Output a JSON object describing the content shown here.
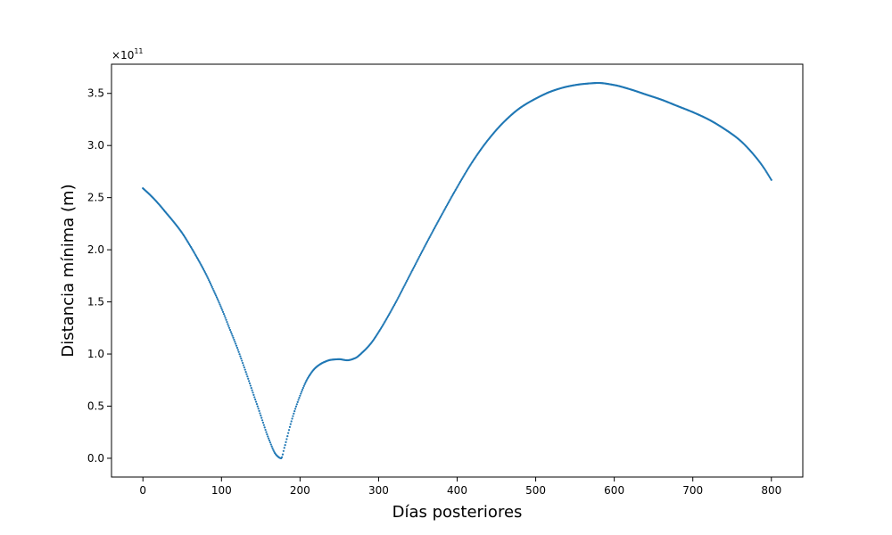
{
  "chart_data": {
    "type": "scatter",
    "title": "",
    "xlabel": "Días posteriores",
    "ylabel": "Distancia mínima (m)",
    "y_scale_base": "×10",
    "y_scale_exponent": "11",
    "y_scale_factor": 100000000000.0,
    "xlim": [
      -40,
      840
    ],
    "ylim": [
      -0.18,
      3.78
    ],
    "x_ticks": [
      0,
      100,
      200,
      300,
      400,
      500,
      600,
      700,
      800
    ],
    "x_tick_labels": [
      "0",
      "100",
      "200",
      "300",
      "400",
      "500",
      "600",
      "700",
      "800"
    ],
    "y_ticks": [
      0.0,
      0.5,
      1.0,
      1.5,
      2.0,
      2.5,
      3.0,
      3.5
    ],
    "y_tick_labels": [
      "0.0",
      "0.5",
      "1.0",
      "1.5",
      "2.0",
      "2.5",
      "3.0",
      "3.5"
    ],
    "grid": false,
    "marker": "dots",
    "color": "#1f77b4",
    "series": [
      {
        "x": [
          0,
          10,
          20,
          30,
          40,
          50,
          60,
          70,
          80,
          90,
          100,
          110,
          120,
          130,
          140,
          150,
          160,
          170,
          176,
          180,
          190,
          200,
          210,
          220,
          230,
          240,
          250,
          260,
          270,
          280,
          290,
          300,
          320,
          340,
          360,
          380,
          400,
          420,
          440,
          460,
          480,
          500,
          520,
          540,
          560,
          580,
          600,
          620,
          640,
          660,
          680,
          700,
          720,
          740,
          760,
          780,
          790,
          800
        ],
        "y": [
          2.59,
          2.52,
          2.44,
          2.35,
          2.26,
          2.16,
          2.04,
          1.91,
          1.77,
          1.61,
          1.44,
          1.25,
          1.06,
          0.85,
          0.63,
          0.41,
          0.19,
          0.03,
          0.0,
          0.1,
          0.38,
          0.6,
          0.77,
          0.87,
          0.92,
          0.945,
          0.95,
          0.94,
          0.96,
          1.02,
          1.1,
          1.21,
          1.47,
          1.76,
          2.05,
          2.33,
          2.6,
          2.85,
          3.06,
          3.23,
          3.36,
          3.45,
          3.52,
          3.565,
          3.59,
          3.6,
          3.58,
          3.54,
          3.49,
          3.44,
          3.38,
          3.32,
          3.25,
          3.16,
          3.05,
          2.89,
          2.79,
          2.67
        ]
      }
    ]
  }
}
